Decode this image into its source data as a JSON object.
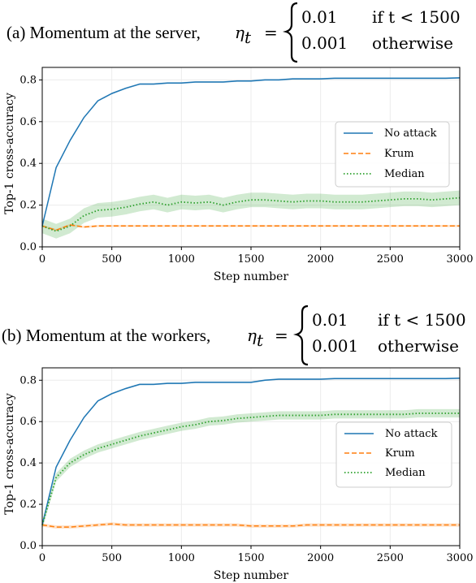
{
  "chart_data": [
    {
      "type": "line",
      "title": {
        "prefix": "(a) Momentum at the server,",
        "var": "η",
        "sub": "t",
        "eq": "=",
        "case1_value": "0.01",
        "case1_cond": "if t < 1500",
        "case2_value": "0.001",
        "case2_cond": "otherwise"
      },
      "xlabel": "Step number",
      "ylabel": "Top-1 cross-accuracy",
      "xlim": [
        0,
        3000
      ],
      "ylim": [
        0,
        0.86
      ],
      "xticks": [
        "0",
        "500",
        "1000",
        "1500",
        "2000",
        "2500",
        "3000"
      ],
      "yticks": [
        "0.0",
        "0.2",
        "0.4",
        "0.6",
        "0.8"
      ],
      "grid": true,
      "legend_position": "center-right",
      "series": [
        {
          "name": "No attack",
          "color": "#1f77b4",
          "style": "solid",
          "x": [
            0,
            100,
            200,
            300,
            400,
            500,
            600,
            700,
            800,
            900,
            1000,
            1100,
            1200,
            1300,
            1400,
            1500,
            1600,
            1700,
            1800,
            1900,
            2000,
            2100,
            2200,
            2300,
            2400,
            2500,
            2600,
            2700,
            2800,
            2900,
            3000
          ],
          "y": [
            0.1,
            0.38,
            0.51,
            0.62,
            0.7,
            0.735,
            0.76,
            0.78,
            0.78,
            0.785,
            0.785,
            0.79,
            0.79,
            0.79,
            0.795,
            0.795,
            0.8,
            0.8,
            0.805,
            0.805,
            0.805,
            0.808,
            0.808,
            0.808,
            0.808,
            0.808,
            0.808,
            0.808,
            0.808,
            0.808,
            0.81
          ],
          "band": 0.004
        },
        {
          "name": "Krum",
          "color": "#ff7f0e",
          "style": "dashed",
          "x": [
            0,
            100,
            200,
            300,
            400,
            500,
            600,
            700,
            800,
            900,
            1000,
            1100,
            1200,
            1300,
            1400,
            1500,
            1600,
            1700,
            1800,
            1900,
            2000,
            2100,
            2200,
            2300,
            2400,
            2500,
            2600,
            2700,
            2800,
            2900,
            3000
          ],
          "y": [
            0.1,
            0.08,
            0.105,
            0.095,
            0.1,
            0.1,
            0.1,
            0.1,
            0.1,
            0.1,
            0.1,
            0.1,
            0.1,
            0.1,
            0.1,
            0.1,
            0.1,
            0.1,
            0.1,
            0.1,
            0.1,
            0.1,
            0.1,
            0.1,
            0.1,
            0.1,
            0.1,
            0.1,
            0.1,
            0.1,
            0.1
          ],
          "band": 0.005
        },
        {
          "name": "Median",
          "color": "#2ca02c",
          "style": "dotted",
          "x": [
            0,
            100,
            200,
            300,
            400,
            500,
            600,
            700,
            800,
            900,
            1000,
            1100,
            1200,
            1300,
            1400,
            1500,
            1600,
            1700,
            1800,
            1900,
            2000,
            2100,
            2200,
            2300,
            2400,
            2500,
            2600,
            2700,
            2800,
            2900,
            3000
          ],
          "y": [
            0.1,
            0.075,
            0.1,
            0.15,
            0.175,
            0.18,
            0.19,
            0.205,
            0.215,
            0.2,
            0.215,
            0.21,
            0.215,
            0.2,
            0.215,
            0.225,
            0.225,
            0.22,
            0.215,
            0.22,
            0.22,
            0.215,
            0.215,
            0.215,
            0.22,
            0.225,
            0.23,
            0.23,
            0.225,
            0.23,
            0.235
          ],
          "band": 0.035
        }
      ]
    },
    {
      "type": "line",
      "title": {
        "prefix": "(b) Momentum at the workers,",
        "var": "η",
        "sub": "t",
        "eq": "=",
        "case1_value": "0.01",
        "case1_cond": "if t < 1500",
        "case2_value": "0.001",
        "case2_cond": "otherwise"
      },
      "xlabel": "Step number",
      "ylabel": "Top-1 cross-accuracy",
      "xlim": [
        0,
        3000
      ],
      "ylim": [
        0,
        0.86
      ],
      "xticks": [
        "0",
        "500",
        "1000",
        "1500",
        "2000",
        "2500",
        "3000"
      ],
      "yticks": [
        "0.0",
        "0.2",
        "0.4",
        "0.6",
        "0.8"
      ],
      "grid": true,
      "legend_position": "center-right",
      "series": [
        {
          "name": "No attack",
          "color": "#1f77b4",
          "style": "solid",
          "x": [
            0,
            100,
            200,
            300,
            400,
            500,
            600,
            700,
            800,
            900,
            1000,
            1100,
            1200,
            1300,
            1400,
            1500,
            1600,
            1700,
            1800,
            1900,
            2000,
            2100,
            2200,
            2300,
            2400,
            2500,
            2600,
            2700,
            2800,
            2900,
            3000
          ],
          "y": [
            0.1,
            0.38,
            0.51,
            0.62,
            0.7,
            0.735,
            0.76,
            0.78,
            0.78,
            0.785,
            0.785,
            0.79,
            0.79,
            0.79,
            0.79,
            0.79,
            0.8,
            0.805,
            0.805,
            0.805,
            0.805,
            0.808,
            0.808,
            0.808,
            0.808,
            0.808,
            0.808,
            0.808,
            0.808,
            0.808,
            0.81
          ],
          "band": 0.004
        },
        {
          "name": "Krum",
          "color": "#ff7f0e",
          "style": "dashed",
          "x": [
            0,
            100,
            200,
            300,
            400,
            500,
            600,
            700,
            800,
            900,
            1000,
            1100,
            1200,
            1300,
            1400,
            1500,
            1600,
            1700,
            1800,
            1900,
            2000,
            2100,
            2200,
            2300,
            2400,
            2500,
            2600,
            2700,
            2800,
            2900,
            3000
          ],
          "y": [
            0.1,
            0.09,
            0.09,
            0.095,
            0.1,
            0.105,
            0.1,
            0.1,
            0.1,
            0.1,
            0.1,
            0.1,
            0.1,
            0.1,
            0.1,
            0.095,
            0.095,
            0.095,
            0.095,
            0.1,
            0.1,
            0.1,
            0.1,
            0.1,
            0.1,
            0.1,
            0.1,
            0.1,
            0.1,
            0.1,
            0.1
          ],
          "band": 0.008
        },
        {
          "name": "Median",
          "color": "#2ca02c",
          "style": "dotted",
          "x": [
            0,
            100,
            200,
            300,
            400,
            500,
            600,
            700,
            800,
            900,
            1000,
            1100,
            1200,
            1300,
            1400,
            1500,
            1600,
            1700,
            1800,
            1900,
            2000,
            2100,
            2200,
            2300,
            2400,
            2500,
            2600,
            2700,
            2800,
            2900,
            3000
          ],
          "y": [
            0.1,
            0.33,
            0.4,
            0.44,
            0.47,
            0.49,
            0.51,
            0.53,
            0.545,
            0.56,
            0.575,
            0.585,
            0.6,
            0.605,
            0.615,
            0.62,
            0.625,
            0.63,
            0.63,
            0.63,
            0.63,
            0.635,
            0.635,
            0.635,
            0.635,
            0.635,
            0.635,
            0.64,
            0.64,
            0.64,
            0.64
          ],
          "band": 0.02
        }
      ]
    }
  ]
}
